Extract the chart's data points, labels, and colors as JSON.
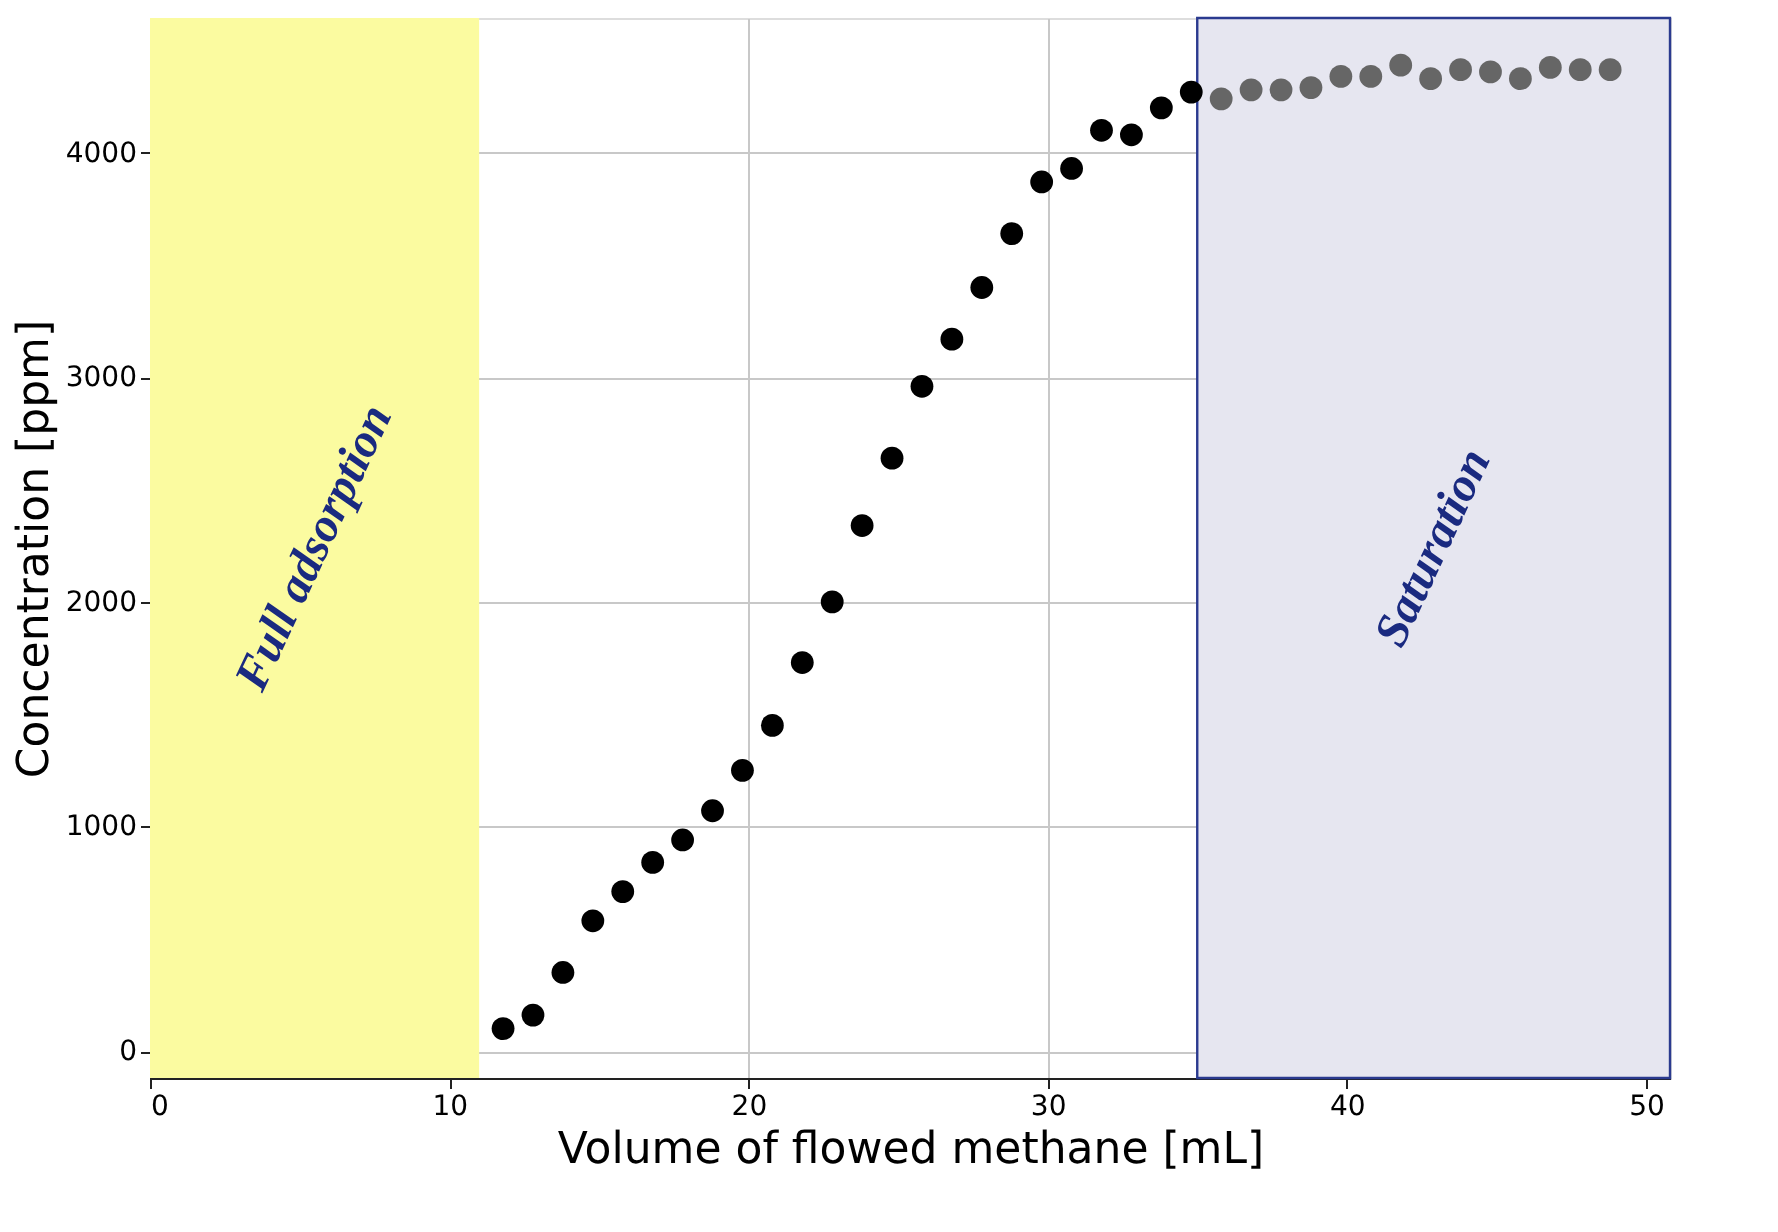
{
  "chart_data": {
    "type": "scatter",
    "xlabel": "Volume of flowed methane  [mL]",
    "ylabel": "Concentration  [ppm]",
    "xlim": [
      0,
      50.8
    ],
    "ylim": [
      -120,
      4600
    ],
    "xticks": [
      0,
      10,
      20,
      30,
      40,
      50
    ],
    "yticks": [
      0,
      1000,
      2000,
      3000,
      4000
    ],
    "grid": true,
    "marker": "circle",
    "series": [
      {
        "color": "#000000",
        "x": [
          11.8,
          12.8,
          13.8,
          14.8,
          15.8,
          16.8,
          17.8,
          18.8,
          19.8,
          20.8,
          21.8,
          22.8,
          23.8,
          24.8,
          25.8,
          26.8,
          27.8,
          28.8,
          29.8,
          30.8,
          31.8,
          32.8,
          33.8,
          34.8
        ],
        "values": [
          100,
          160,
          350,
          580,
          710,
          840,
          940,
          1070,
          1250,
          1450,
          1730,
          2000,
          2340,
          2640,
          2960,
          3170,
          3400,
          3640,
          3870,
          3930,
          4100,
          4080,
          4200,
          4270
        ]
      },
      {
        "color": "#666666",
        "x": [
          35.8,
          36.8,
          37.8,
          38.8,
          39.8,
          40.8,
          41.8,
          42.8,
          43.8,
          44.8,
          45.8,
          46.8,
          47.8,
          48.8
        ],
        "values": [
          4240,
          4280,
          4280,
          4290,
          4340,
          4340,
          4390,
          4330,
          4370,
          4360,
          4330,
          4380,
          4370,
          4370
        ]
      }
    ],
    "bands": [
      {
        "axis": "x",
        "from": 0,
        "to": 11,
        "label": "Full adsorption",
        "color": "#fbfba0"
      },
      {
        "axis": "x",
        "from": 35,
        "to": 50.8,
        "label": "Saturation",
        "color": "#e6e6f0"
      }
    ]
  }
}
